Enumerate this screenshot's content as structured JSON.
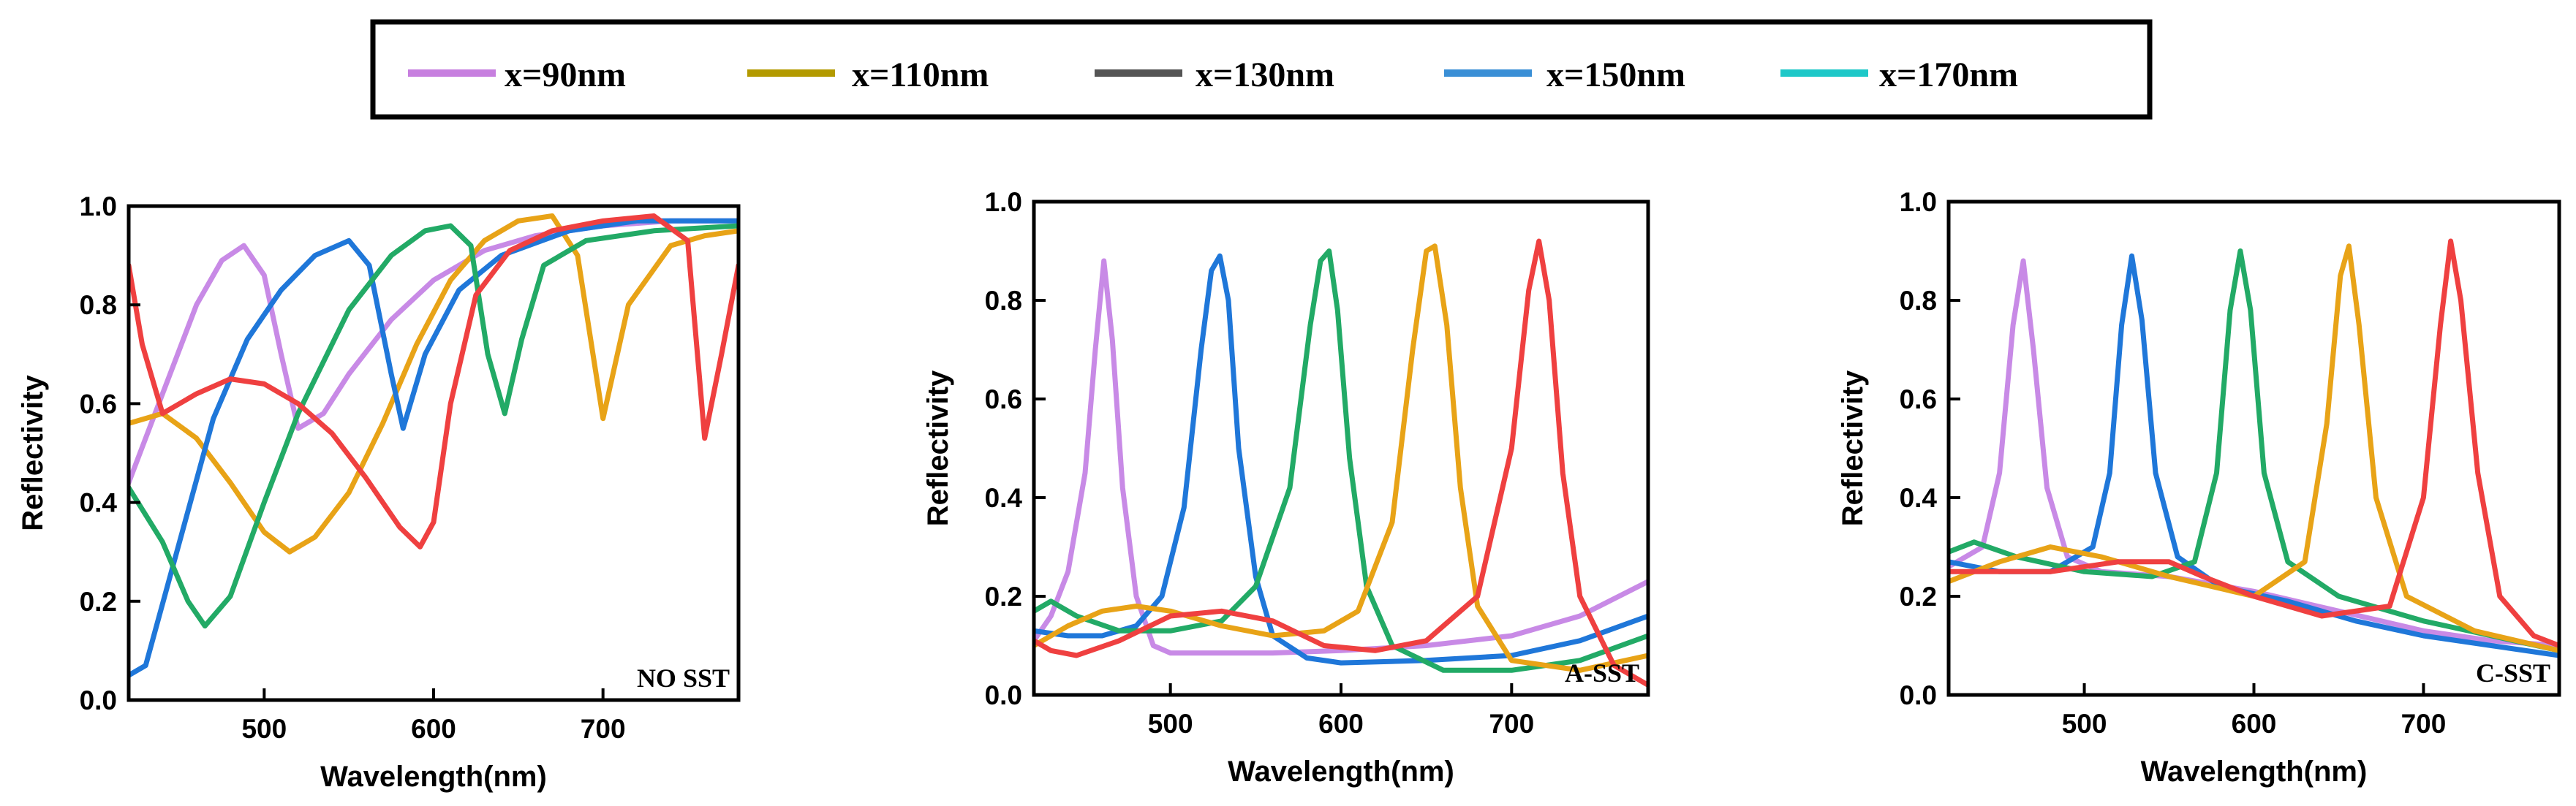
{
  "legend": [
    {
      "label": "x=90nm",
      "color": "#c77fdf"
    },
    {
      "label": "x=110nm",
      "color": "#b39a00"
    },
    {
      "label": "x=130nm",
      "color": "#555555"
    },
    {
      "label": "x=150nm",
      "color": "#3a8fd6"
    },
    {
      "label": "x=170nm",
      "color": "#1ec8c8"
    }
  ],
  "chart_data": [
    {
      "type": "line",
      "annotation": "NO SST",
      "xlabel": "Wavelength(nm)",
      "ylabel": "Reflectivity",
      "xlim": [
        420,
        780
      ],
      "ylim": [
        0.0,
        1.0
      ],
      "xticks": [
        "500",
        "600",
        "700"
      ],
      "yticks": [
        "0.0",
        "0.2",
        "0.4",
        "0.6",
        "0.8",
        "1.0"
      ],
      "series": [
        {
          "name": "purple",
          "color": "#c88ae6",
          "x": [
            420,
            440,
            460,
            475,
            488,
            500,
            510,
            520,
            535,
            550,
            575,
            600,
            630,
            660,
            700,
            740,
            780
          ],
          "y": [
            0.44,
            0.62,
            0.8,
            0.89,
            0.92,
            0.86,
            0.7,
            0.55,
            0.58,
            0.66,
            0.77,
            0.85,
            0.91,
            0.94,
            0.96,
            0.97,
            0.97
          ]
        },
        {
          "name": "orange",
          "color": "#e8a317",
          "x": [
            420,
            440,
            460,
            480,
            500,
            515,
            530,
            550,
            570,
            590,
            610,
            630,
            650,
            670,
            685,
            700,
            715,
            740,
            760,
            780
          ],
          "y": [
            0.56,
            0.58,
            0.53,
            0.44,
            0.34,
            0.3,
            0.33,
            0.42,
            0.56,
            0.72,
            0.85,
            0.93,
            0.97,
            0.98,
            0.9,
            0.57,
            0.8,
            0.92,
            0.94,
            0.95
          ]
        },
        {
          "name": "blue",
          "color": "#1f77d9",
          "x": [
            420,
            430,
            450,
            470,
            490,
            510,
            530,
            550,
            562,
            575,
            582,
            595,
            615,
            640,
            680,
            720,
            780
          ],
          "y": [
            0.05,
            0.07,
            0.32,
            0.57,
            0.73,
            0.83,
            0.9,
            0.93,
            0.88,
            0.66,
            0.55,
            0.7,
            0.83,
            0.9,
            0.95,
            0.97,
            0.97
          ]
        },
        {
          "name": "green",
          "color": "#22aa66",
          "x": [
            420,
            440,
            455,
            465,
            480,
            500,
            520,
            550,
            575,
            595,
            610,
            622,
            632,
            642,
            652,
            665,
            690,
            730,
            780
          ],
          "y": [
            0.43,
            0.32,
            0.2,
            0.15,
            0.21,
            0.4,
            0.58,
            0.79,
            0.9,
            0.95,
            0.96,
            0.92,
            0.7,
            0.58,
            0.73,
            0.88,
            0.93,
            0.95,
            0.96
          ]
        },
        {
          "name": "red",
          "color": "#ef4040",
          "x": [
            420,
            428,
            440,
            460,
            480,
            500,
            520,
            540,
            560,
            580,
            592,
            600,
            610,
            625,
            645,
            670,
            700,
            730,
            750,
            760,
            770,
            780
          ],
          "y": [
            0.88,
            0.72,
            0.58,
            0.62,
            0.65,
            0.64,
            0.6,
            0.54,
            0.45,
            0.35,
            0.31,
            0.36,
            0.6,
            0.82,
            0.91,
            0.95,
            0.97,
            0.98,
            0.93,
            0.53,
            0.7,
            0.88
          ]
        }
      ]
    },
    {
      "type": "line",
      "annotation": "A-SST",
      "xlabel": "Wavelength(nm)",
      "ylabel": "Reflectivity",
      "xlim": [
        420,
        780
      ],
      "ylim": [
        0.0,
        1.0
      ],
      "xticks": [
        "500",
        "600",
        "700"
      ],
      "yticks": [
        "0.0",
        "0.2",
        "0.4",
        "0.6",
        "0.8",
        "1.0"
      ],
      "series": [
        {
          "name": "purple",
          "color": "#c88ae6",
          "x": [
            420,
            430,
            440,
            450,
            456,
            461,
            466,
            472,
            480,
            490,
            500,
            520,
            560,
            600,
            650,
            700,
            740,
            780
          ],
          "y": [
            0.11,
            0.16,
            0.25,
            0.45,
            0.7,
            0.88,
            0.72,
            0.42,
            0.2,
            0.1,
            0.085,
            0.085,
            0.085,
            0.09,
            0.1,
            0.12,
            0.16,
            0.23
          ]
        },
        {
          "name": "blue",
          "color": "#1f77d9",
          "x": [
            420,
            440,
            460,
            480,
            495,
            508,
            518,
            524,
            529,
            534,
            540,
            550,
            560,
            580,
            600,
            650,
            700,
            740,
            780
          ],
          "y": [
            0.13,
            0.12,
            0.12,
            0.14,
            0.2,
            0.38,
            0.7,
            0.86,
            0.89,
            0.8,
            0.5,
            0.24,
            0.12,
            0.075,
            0.065,
            0.07,
            0.08,
            0.11,
            0.16
          ]
        },
        {
          "name": "green",
          "color": "#22aa66",
          "x": [
            420,
            430,
            445,
            470,
            500,
            530,
            550,
            570,
            582,
            588,
            593,
            598,
            605,
            615,
            630,
            660,
            700,
            740,
            780
          ],
          "y": [
            0.17,
            0.19,
            0.16,
            0.13,
            0.13,
            0.15,
            0.22,
            0.42,
            0.75,
            0.88,
            0.9,
            0.78,
            0.48,
            0.22,
            0.1,
            0.05,
            0.05,
            0.07,
            0.12
          ]
        },
        {
          "name": "orange",
          "color": "#e8a317",
          "x": [
            420,
            440,
            460,
            480,
            500,
            530,
            560,
            590,
            610,
            630,
            642,
            650,
            655,
            662,
            670,
            680,
            700,
            740,
            780
          ],
          "y": [
            0.1,
            0.14,
            0.17,
            0.18,
            0.17,
            0.14,
            0.12,
            0.13,
            0.17,
            0.35,
            0.7,
            0.9,
            0.91,
            0.75,
            0.42,
            0.18,
            0.07,
            0.05,
            0.08
          ]
        },
        {
          "name": "red",
          "color": "#ef4040",
          "x": [
            420,
            430,
            445,
            470,
            500,
            530,
            560,
            590,
            620,
            650,
            680,
            700,
            710,
            716,
            722,
            730,
            740,
            760,
            780
          ],
          "y": [
            0.11,
            0.09,
            0.08,
            0.11,
            0.16,
            0.17,
            0.15,
            0.1,
            0.09,
            0.11,
            0.2,
            0.5,
            0.82,
            0.92,
            0.8,
            0.45,
            0.2,
            0.06,
            0.02
          ]
        }
      ]
    },
    {
      "type": "line",
      "annotation": "C-SST",
      "xlabel": "Wavelength(nm)",
      "ylabel": "Reflectivity",
      "xlim": [
        420,
        780
      ],
      "ylim": [
        0.0,
        1.0
      ],
      "xticks": [
        "500",
        "600",
        "700"
      ],
      "yticks": [
        "0.0",
        "0.2",
        "0.4",
        "0.6",
        "0.8",
        "1.0"
      ],
      "series": [
        {
          "name": "purple",
          "color": "#c88ae6",
          "x": [
            420,
            440,
            450,
            458,
            464,
            470,
            478,
            490,
            510,
            550,
            600,
            650,
            700,
            740,
            780
          ],
          "y": [
            0.26,
            0.3,
            0.45,
            0.75,
            0.88,
            0.7,
            0.42,
            0.28,
            0.25,
            0.24,
            0.21,
            0.17,
            0.13,
            0.11,
            0.1
          ]
        },
        {
          "name": "blue",
          "color": "#1f77d9",
          "x": [
            420,
            450,
            480,
            505,
            515,
            522,
            528,
            534,
            542,
            555,
            580,
            620,
            660,
            700,
            740,
            780
          ],
          "y": [
            0.27,
            0.25,
            0.25,
            0.3,
            0.45,
            0.75,
            0.89,
            0.76,
            0.45,
            0.28,
            0.22,
            0.19,
            0.15,
            0.12,
            0.1,
            0.08
          ]
        },
        {
          "name": "green",
          "color": "#22aa66",
          "x": [
            420,
            435,
            460,
            500,
            540,
            565,
            578,
            586,
            592,
            598,
            606,
            620,
            650,
            700,
            740,
            780
          ],
          "y": [
            0.29,
            0.31,
            0.28,
            0.25,
            0.24,
            0.27,
            0.45,
            0.78,
            0.9,
            0.78,
            0.45,
            0.27,
            0.2,
            0.15,
            0.12,
            0.09
          ]
        },
        {
          "name": "orange",
          "color": "#e8a317",
          "x": [
            420,
            450,
            480,
            510,
            550,
            600,
            630,
            643,
            651,
            656,
            662,
            672,
            690,
            730,
            780
          ],
          "y": [
            0.23,
            0.27,
            0.3,
            0.28,
            0.24,
            0.2,
            0.27,
            0.55,
            0.85,
            0.91,
            0.75,
            0.4,
            0.2,
            0.13,
            0.09
          ]
        },
        {
          "name": "red",
          "color": "#ef4040",
          "x": [
            420,
            440,
            480,
            520,
            550,
            570,
            600,
            640,
            680,
            700,
            710,
            716,
            722,
            732,
            745,
            765,
            780
          ],
          "y": [
            0.25,
            0.25,
            0.25,
            0.27,
            0.27,
            0.24,
            0.2,
            0.16,
            0.18,
            0.4,
            0.75,
            0.92,
            0.8,
            0.45,
            0.2,
            0.12,
            0.1
          ]
        }
      ]
    }
  ]
}
